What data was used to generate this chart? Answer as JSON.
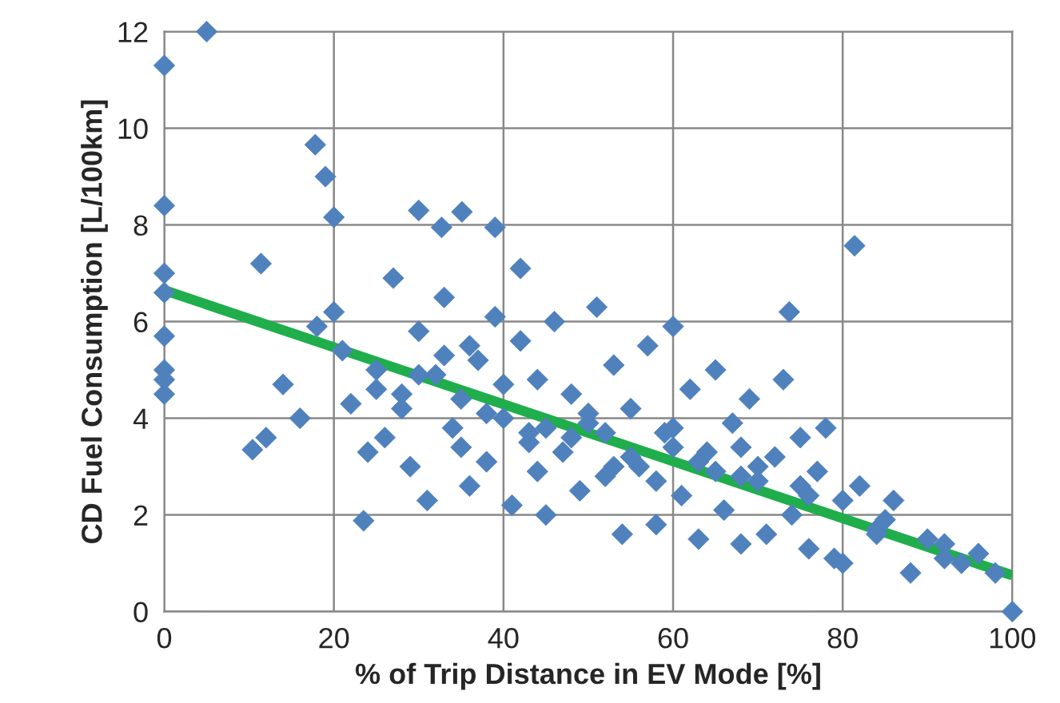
{
  "chart_data": {
    "type": "scatter",
    "xlabel": "% of Trip Distance in EV Mode [%]",
    "ylabel": "CD Fuel Consumption [L/100km]",
    "xlim": [
      0,
      100
    ],
    "ylim": [
      0,
      12
    ],
    "xticks": [
      0,
      20,
      40,
      60,
      80,
      100
    ],
    "yticks": [
      0,
      2,
      4,
      6,
      8,
      10,
      12
    ],
    "grid": true,
    "legend": false,
    "series": [
      {
        "marker": "diamond",
        "color": "#4f81bd",
        "x": [
          0,
          0,
          0,
          0,
          0,
          0,
          0,
          0,
          5,
          17.8,
          19,
          20,
          11.4,
          30,
          32.7,
          35.1,
          39,
          42,
          81.4,
          73.7,
          23.5,
          10.4,
          12,
          14,
          16,
          18,
          20,
          21,
          22,
          24,
          25,
          26,
          27,
          28,
          29,
          30,
          31,
          32,
          33,
          34,
          35,
          36,
          37,
          38,
          39,
          40,
          41,
          42,
          43,
          44,
          45,
          46,
          47,
          48,
          49,
          50,
          51,
          52,
          53,
          54,
          55,
          56,
          57,
          58,
          59,
          60,
          61,
          62,
          63,
          64,
          65,
          66,
          67,
          68,
          69,
          70,
          71,
          72,
          73,
          74,
          75,
          76,
          77,
          78,
          79,
          80,
          82,
          84,
          86,
          88,
          90,
          92,
          94,
          96,
          98,
          100,
          25,
          30,
          35,
          40,
          45,
          50,
          55,
          60,
          65,
          70,
          75,
          80,
          85,
          33,
          38,
          43,
          48,
          53,
          58,
          63,
          68,
          28,
          36,
          44,
          52,
          60,
          68,
          76,
          84,
          92
        ],
        "values": [
          11.3,
          8.4,
          7.0,
          6.6,
          5.7,
          5.0,
          4.8,
          4.5,
          12.0,
          9.66,
          9.0,
          8.16,
          7.2,
          8.3,
          7.95,
          8.27,
          7.95,
          7.1,
          7.57,
          6.2,
          1.88,
          3.35,
          3.6,
          4.7,
          4.0,
          5.9,
          6.2,
          5.4,
          4.3,
          3.3,
          5.0,
          3.6,
          6.9,
          4.2,
          3.0,
          5.8,
          2.3,
          4.9,
          6.5,
          3.8,
          4.4,
          2.6,
          5.2,
          3.1,
          6.1,
          4.0,
          2.2,
          5.6,
          3.5,
          4.8,
          2.0,
          6.0,
          3.3,
          4.5,
          2.5,
          3.9,
          6.3,
          2.8,
          5.1,
          1.6,
          4.2,
          3.0,
          5.5,
          1.8,
          3.7,
          5.9,
          2.4,
          4.6,
          1.5,
          3.3,
          5.0,
          2.1,
          3.9,
          1.4,
          4.4,
          2.7,
          1.6,
          3.2,
          4.8,
          2.0,
          3.6,
          1.3,
          2.9,
          3.8,
          1.1,
          1.0,
          2.6,
          1.7,
          2.3,
          0.8,
          1.5,
          1.4,
          1.0,
          1.2,
          0.8,
          0.0,
          4.6,
          4.9,
          3.4,
          4.7,
          3.8,
          4.1,
          3.2,
          3.4,
          2.9,
          3.0,
          2.6,
          2.3,
          1.9,
          5.3,
          4.1,
          3.7,
          3.6,
          3.0,
          2.7,
          3.1,
          2.8,
          4.5,
          5.5,
          2.9,
          3.7,
          3.8,
          3.4,
          2.4,
          1.6,
          1.1
        ]
      },
      {
        "type": "line",
        "color": "#1fae4b",
        "x": [
          0,
          100
        ],
        "values": [
          6.65,
          0.75
        ]
      }
    ]
  }
}
